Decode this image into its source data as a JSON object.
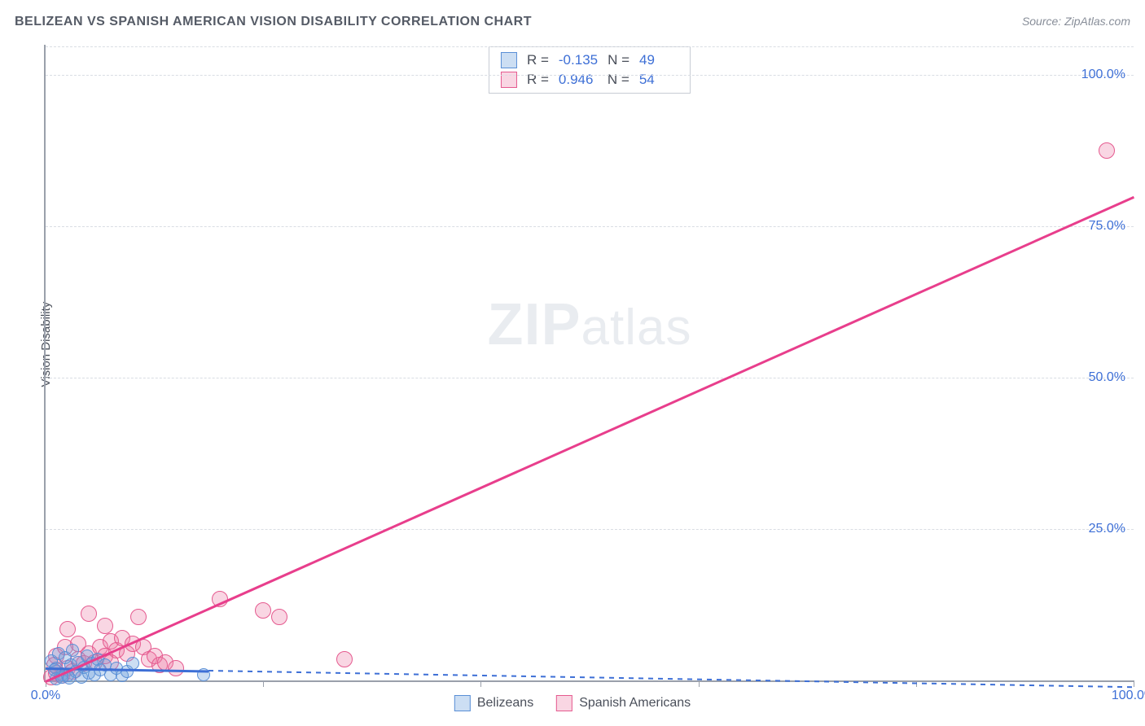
{
  "title": "BELIZEAN VS SPANISH AMERICAN VISION DISABILITY CORRELATION CHART",
  "source": "Source: ZipAtlas.com",
  "ylabel": "Vision Disability",
  "watermark_bold": "ZIP",
  "watermark_rest": "atlas",
  "xlim": [
    0,
    100
  ],
  "ylim": [
    0,
    105
  ],
  "ytick_values": [
    25,
    50,
    75,
    100
  ],
  "ytick_labels": [
    "25.0%",
    "50.0%",
    "75.0%",
    "100.0%"
  ],
  "xtick_values": [
    0,
    20,
    40,
    60,
    80,
    100
  ],
  "xtick_label_left": "0.0%",
  "xtick_label_right": "100.0%",
  "grid_color": "#d9dde3",
  "axis_color": "#9aa0ab",
  "label_color": "#3d6fd6",
  "series": [
    {
      "name": "Belizeans",
      "color_fill": "rgba(108,160,222,0.35)",
      "color_stroke": "#5a8fd6",
      "color_line": "#3d6fd6",
      "r_label": "R =",
      "r_value": "-0.135",
      "n_label": "N =",
      "n_value": "49",
      "marker_radius": 8,
      "trend": {
        "x1": 0,
        "y1": 2.2,
        "x2": 100,
        "y2": -1.0,
        "solid_until": 15,
        "dashed": true
      },
      "points": [
        [
          0.5,
          3.2
        ],
        [
          1.0,
          2.0
        ],
        [
          1.2,
          4.5
        ],
        [
          1.5,
          1.0
        ],
        [
          1.8,
          3.8
        ],
        [
          2.0,
          0.8
        ],
        [
          2.3,
          2.5
        ],
        [
          2.5,
          5.0
        ],
        [
          2.8,
          1.5
        ],
        [
          3.0,
          3.0
        ],
        [
          3.3,
          0.5
        ],
        [
          3.5,
          2.2
        ],
        [
          3.8,
          4.0
        ],
        [
          4.0,
          1.2
        ],
        [
          4.3,
          2.8
        ],
        [
          4.5,
          0.9
        ],
        [
          4.8,
          3.5
        ],
        [
          5.0,
          1.8
        ],
        [
          5.5,
          2.5
        ],
        [
          6.0,
          1.0
        ],
        [
          6.5,
          2.0
        ],
        [
          7.0,
          0.8
        ],
        [
          7.5,
          1.5
        ],
        [
          8.0,
          2.8
        ],
        [
          1.0,
          0.3
        ],
        [
          1.5,
          0.6
        ],
        [
          2.2,
          0.4
        ],
        [
          0.8,
          1.8
        ],
        [
          14.5,
          1.0
        ]
      ]
    },
    {
      "name": "Spanish Americans",
      "color_fill": "rgba(234,118,161,0.30)",
      "color_stroke": "#e55a8f",
      "color_line": "#e83e8c",
      "r_label": "R =",
      "r_value": "0.946",
      "n_label": "N =",
      "n_value": "54",
      "marker_radius": 10,
      "trend": {
        "x1": 0,
        "y1": 0,
        "x2": 100,
        "y2": 80,
        "solid_until": 100,
        "dashed": false
      },
      "points": [
        [
          0.5,
          0.5
        ],
        [
          1.0,
          1.2
        ],
        [
          1.5,
          0.8
        ],
        [
          2.0,
          2.0
        ],
        [
          2.5,
          1.5
        ],
        [
          3.0,
          3.5
        ],
        [
          3.5,
          2.8
        ],
        [
          4.0,
          4.5
        ],
        [
          4.5,
          3.0
        ],
        [
          5.0,
          5.5
        ],
        [
          5.5,
          4.0
        ],
        [
          6.0,
          6.5
        ],
        [
          6.5,
          5.0
        ],
        [
          7.0,
          7.0
        ],
        [
          7.5,
          4.5
        ],
        [
          8.0,
          6.0
        ],
        [
          8.5,
          10.5
        ],
        [
          9.0,
          5.5
        ],
        [
          9.5,
          3.5
        ],
        [
          10.0,
          4.0
        ],
        [
          10.5,
          2.5
        ],
        [
          11.0,
          3.0
        ],
        [
          12.0,
          2.0
        ],
        [
          4.0,
          11.0
        ],
        [
          16.0,
          13.5
        ],
        [
          20.0,
          11.5
        ],
        [
          21.5,
          10.5
        ],
        [
          27.5,
          3.5
        ],
        [
          1.0,
          4.0
        ],
        [
          2.0,
          8.5
        ],
        [
          3.0,
          6.0
        ],
        [
          5.5,
          9.0
        ],
        [
          6.0,
          3.0
        ],
        [
          0.8,
          2.5
        ],
        [
          1.8,
          5.5
        ],
        [
          97.5,
          87.5
        ]
      ]
    }
  ],
  "legend_bottom": [
    "Belizeans",
    "Spanish Americans"
  ]
}
